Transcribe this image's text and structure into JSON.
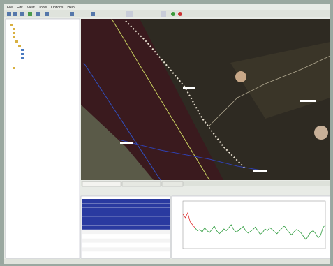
{
  "menu": [
    "File",
    "Edit",
    "View",
    "Tools",
    "Options",
    "Help"
  ],
  "chart_data": {
    "type": "line",
    "xlim": [
      0,
      59
    ],
    "ylim": [
      20,
      100
    ],
    "series": [
      {
        "color": "#e03030",
        "x": [
          0,
          1,
          2,
          3,
          4,
          5
        ],
        "values": [
          78,
          72,
          80,
          65,
          60,
          55
        ]
      },
      {
        "color": "#2a9a3a",
        "x": [
          5,
          6,
          7,
          8,
          9,
          10,
          11,
          12,
          13,
          14,
          15,
          16,
          17,
          18,
          19,
          20,
          21,
          22,
          23,
          24,
          25,
          26,
          27,
          28,
          29,
          30,
          31,
          32,
          33,
          34,
          35,
          36,
          37,
          38,
          39,
          40,
          41,
          42,
          43,
          44,
          45,
          46,
          47,
          48,
          49,
          50,
          51,
          52,
          53,
          54,
          55,
          56,
          57,
          58,
          59
        ],
        "values": [
          55,
          50,
          52,
          48,
          55,
          50,
          47,
          52,
          58,
          50,
          45,
          48,
          53,
          50,
          55,
          60,
          52,
          48,
          50,
          54,
          57,
          50,
          46,
          49,
          52,
          56,
          50,
          44,
          47,
          53,
          50,
          55,
          52,
          48,
          45,
          50,
          54,
          58,
          52,
          47,
          43,
          48,
          52,
          50,
          46,
          40,
          35,
          42,
          48,
          50,
          45,
          38,
          42,
          55,
          60
        ]
      }
    ]
  }
}
